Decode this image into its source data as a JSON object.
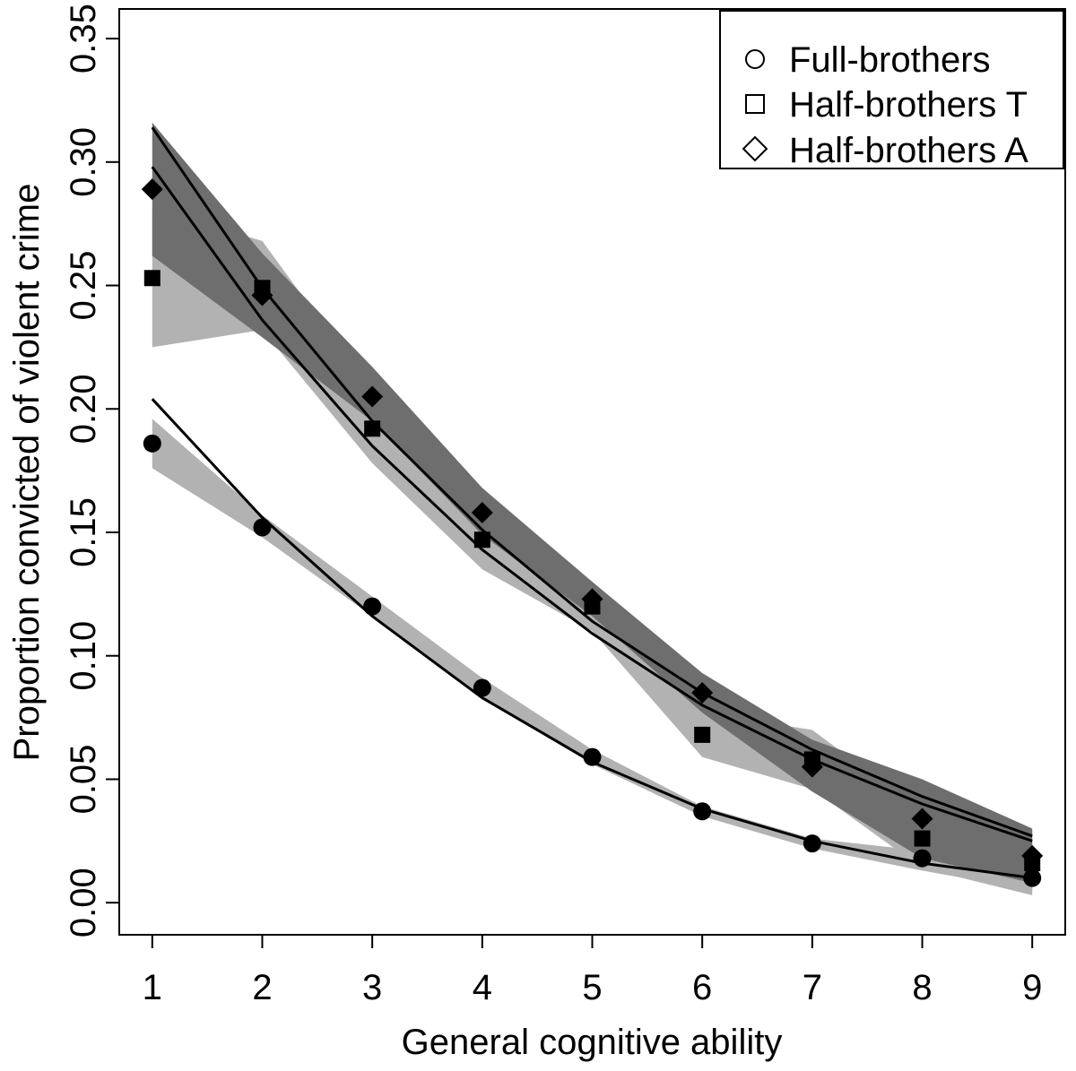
{
  "chart_data": {
    "type": "line",
    "title": "",
    "xlabel": "General cognitive ability",
    "ylabel": "Proportion convicted of violent crime",
    "x": [
      1,
      2,
      3,
      4,
      5,
      6,
      7,
      8,
      9
    ],
    "xticks": [
      "1",
      "2",
      "3",
      "4",
      "5",
      "6",
      "7",
      "8",
      "9"
    ],
    "yticks": [
      "0.00",
      "0.05",
      "0.10",
      "0.15",
      "0.20",
      "0.25",
      "0.30",
      "0.35"
    ],
    "xlim": [
      0.7,
      9.3
    ],
    "ylim": [
      -0.013,
      0.362
    ],
    "legend_position": "top-right",
    "colors": {
      "band_light": "#b2b2b2",
      "band_dark": "#6e6e6e",
      "line": "#000000",
      "marker": "#000000"
    },
    "series": [
      {
        "name": "Full-brothers",
        "marker": "circle",
        "points": [
          0.186,
          0.152,
          0.12,
          0.087,
          0.059,
          0.037,
          0.024,
          0.018,
          0.01
        ],
        "fit": [
          0.204,
          0.156,
          0.116,
          0.083,
          0.057,
          0.038,
          0.025,
          0.016,
          0.01
        ],
        "ci_lower": [
          0.176,
          0.148,
          0.116,
          0.083,
          0.056,
          0.035,
          0.022,
          0.013,
          0.005
        ],
        "ci_upper": [
          0.196,
          0.157,
          0.124,
          0.091,
          0.062,
          0.039,
          0.026,
          0.021,
          0.016
        ],
        "band": "light"
      },
      {
        "name": "Half-brothers T",
        "marker": "square",
        "points": [
          0.253,
          0.249,
          0.192,
          0.147,
          0.12,
          0.068,
          0.058,
          0.026,
          0.016
        ],
        "fit": [
          0.298,
          0.236,
          0.185,
          0.143,
          0.109,
          0.08,
          0.058,
          0.04,
          0.025
        ],
        "ci_lower": [
          0.225,
          0.232,
          0.178,
          0.135,
          0.11,
          0.059,
          0.046,
          0.014,
          0.003
        ],
        "ci_upper": [
          0.281,
          0.268,
          0.207,
          0.159,
          0.13,
          0.077,
          0.07,
          0.037,
          0.029
        ],
        "band": "light"
      },
      {
        "name": "Half-brothers A",
        "marker": "diamond",
        "points": [
          0.289,
          0.246,
          0.205,
          0.158,
          0.123,
          0.085,
          0.055,
          0.034,
          0.019
        ],
        "fit": [
          0.314,
          0.249,
          0.195,
          0.151,
          0.114,
          0.085,
          0.062,
          0.043,
          0.027
        ],
        "ci_lower": [
          0.262,
          0.229,
          0.195,
          0.149,
          0.116,
          0.077,
          0.045,
          0.018,
          0.008
        ],
        "ci_upper": [
          0.316,
          0.263,
          0.217,
          0.168,
          0.13,
          0.093,
          0.066,
          0.05,
          0.03
        ],
        "band": "dark"
      }
    ]
  }
}
